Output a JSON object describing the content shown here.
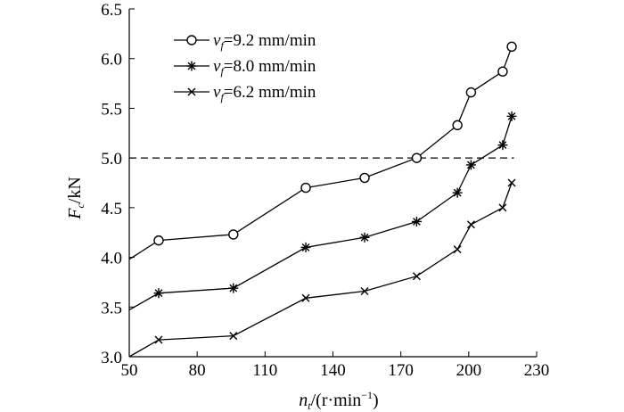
{
  "chart_data": {
    "type": "line",
    "xlabel": {
      "main": "n",
      "sub": "t",
      "unit": "/(r·min",
      "exp": "−1",
      "close": ")"
    },
    "ylabel": {
      "main": "F",
      "sub": "c",
      "unit": "/kN"
    },
    "xlim": [
      50,
      230
    ],
    "ylim": [
      3.0,
      6.5
    ],
    "xticks": [
      "50",
      "80",
      "110",
      "140",
      "170",
      "200",
      "230"
    ],
    "yticks": [
      "3.0",
      "3.5",
      "4.0",
      "4.5",
      "5.0",
      "5.5",
      "6.0",
      "6.5"
    ],
    "grid": false,
    "legend_position": "top-left",
    "reference_line": {
      "y": 5.0,
      "style": "dashed"
    },
    "series": [
      {
        "name": {
          "main": "v",
          "sub": "f",
          "rest": "=9.2 mm/min"
        },
        "marker": "circle",
        "x": [
          50,
          63,
          96,
          128,
          154,
          177,
          195,
          201,
          215,
          219
        ],
        "y": [
          3.98,
          4.17,
          4.23,
          4.7,
          4.8,
          5.0,
          5.33,
          5.66,
          5.87,
          6.12
        ]
      },
      {
        "name": {
          "main": "v",
          "sub": "f",
          "rest": "=8.0 mm/min"
        },
        "marker": "asterisk",
        "x": [
          50,
          63,
          96,
          128,
          154,
          177,
          195,
          201,
          215,
          219
        ],
        "y": [
          3.47,
          3.64,
          3.69,
          4.1,
          4.2,
          4.36,
          4.65,
          4.93,
          5.13,
          5.42
        ]
      },
      {
        "name": {
          "main": "v",
          "sub": "f",
          "rest": "=6.2 mm/min"
        },
        "marker": "x",
        "x": [
          50,
          63,
          96,
          128,
          154,
          177,
          195,
          201,
          215,
          219
        ],
        "y": [
          3.0,
          3.17,
          3.21,
          3.59,
          3.66,
          3.81,
          4.08,
          4.33,
          4.5,
          4.75
        ]
      }
    ]
  }
}
